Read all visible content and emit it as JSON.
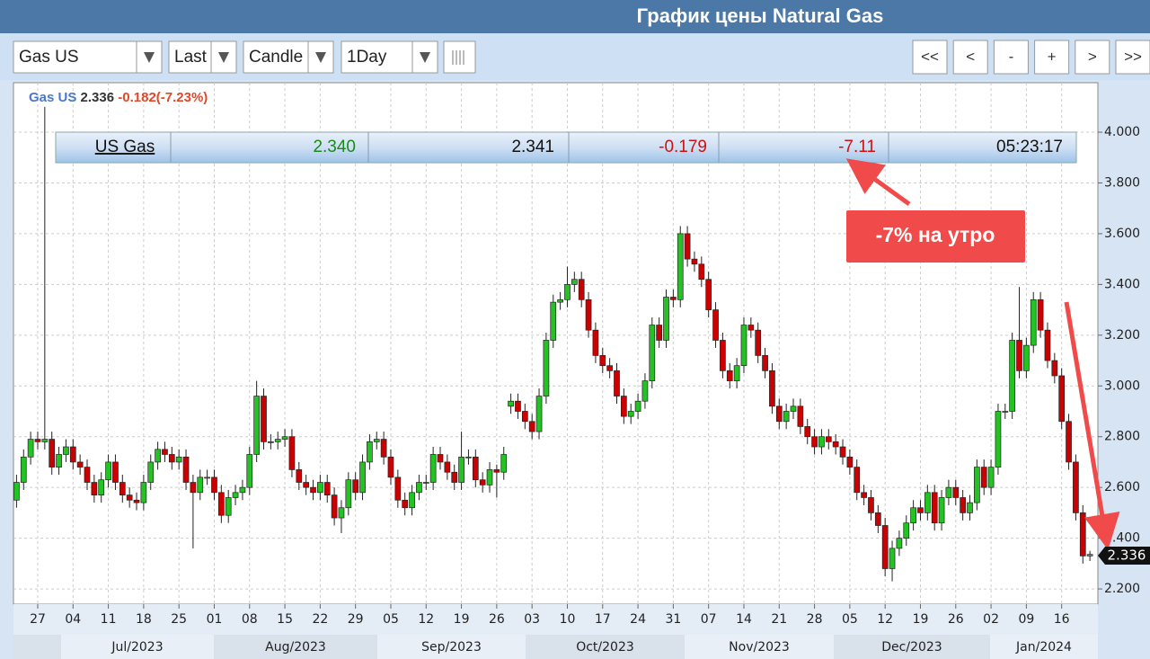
{
  "header": {
    "title": "График цены Natural Gas"
  },
  "toolbar": {
    "selects": [
      "Gas US",
      "Last",
      "Candle",
      "1Day"
    ],
    "buttons": [
      "<<",
      "<",
      "-",
      "+",
      ">",
      ">>"
    ]
  },
  "quote": {
    "name": "US Gas",
    "cells": [
      "2.340",
      "2.341",
      "-0.179",
      "-7.11",
      "05:23:17"
    ]
  },
  "chart_data": {
    "type": "candlestick",
    "legend": {
      "symbol": "Gas US",
      "price": "2.336",
      "change": "-0.182(-7.23%)"
    },
    "annotation": "-7% на утро",
    "last_price_label": "2.336",
    "up_color": "#22c322",
    "down_color": "#cc0000",
    "ylim": [
      2.14,
      4.195
    ],
    "yticks": [
      {
        "value": 2.2,
        "label": "2.200"
      },
      {
        "value": 2.4,
        "label": "2.400"
      },
      {
        "value": 2.6,
        "label": "2.600"
      },
      {
        "value": 2.8,
        "label": "2.800"
      },
      {
        "value": 3.0,
        "label": "3.000"
      },
      {
        "value": 3.2,
        "label": "3.200"
      },
      {
        "value": 3.4,
        "label": "3.400"
      },
      {
        "value": 3.6,
        "label": "3.600"
      },
      {
        "value": 3.8,
        "label": "3.800"
      },
      {
        "value": 4.0,
        "label": "4.000"
      }
    ],
    "grid": true,
    "months": [
      "Jul/2023",
      "Aug/2023",
      "Sep/2023",
      "Oct/2023",
      "Nov/2023",
      "Dec/2023",
      "Jan/2024"
    ],
    "categories": [
      null,
      null,
      null,
      "27",
      null,
      null,
      null,
      null,
      "04",
      null,
      null,
      null,
      null,
      "11",
      null,
      null,
      null,
      null,
      "18",
      null,
      null,
      null,
      null,
      "25",
      null,
      null,
      null,
      null,
      "01",
      null,
      null,
      null,
      null,
      "08",
      null,
      null,
      null,
      null,
      "15",
      null,
      null,
      null,
      null,
      "22",
      null,
      null,
      null,
      null,
      "29",
      null,
      null,
      null,
      null,
      "05",
      null,
      null,
      null,
      null,
      "12",
      null,
      null,
      null,
      null,
      "19",
      null,
      null,
      null,
      null,
      "26",
      null,
      null,
      null,
      null,
      "03",
      null,
      null,
      null,
      null,
      "10",
      null,
      null,
      null,
      null,
      "17",
      null,
      null,
      null,
      null,
      "24",
      null,
      null,
      null,
      null,
      "31",
      null,
      null,
      null,
      null,
      "07",
      null,
      null,
      null,
      null,
      "14",
      null,
      null,
      null,
      null,
      "21",
      null,
      null,
      null,
      null,
      "28",
      null,
      null,
      null,
      null,
      "05",
      null,
      null,
      null,
      null,
      "12",
      null,
      null,
      null,
      null,
      "19",
      null,
      null,
      null,
      null,
      "26",
      null,
      null,
      null,
      null,
      "02",
      null,
      null,
      null,
      null,
      "09",
      null,
      null,
      null,
      null,
      "16",
      null,
      null,
      null,
      null
    ],
    "open": [
      2.55,
      2.62,
      2.72,
      2.79,
      2.78,
      2.79,
      2.68,
      2.73,
      2.76,
      2.7,
      2.68,
      2.62,
      2.57,
      2.63,
      2.7,
      2.62,
      2.57,
      2.55,
      2.54,
      2.62,
      2.7,
      2.75,
      2.73,
      2.7,
      2.72,
      2.62,
      2.58,
      2.64,
      2.64,
      2.58,
      2.49,
      2.56,
      2.58,
      2.6,
      2.73,
      2.96,
      2.78,
      2.78,
      2.79,
      2.8,
      2.67,
      2.62,
      2.6,
      2.58,
      2.62,
      2.57,
      2.48,
      2.52,
      2.63,
      2.58,
      2.7,
      2.78,
      2.79,
      2.72,
      2.64,
      2.55,
      2.52,
      2.58,
      2.62,
      2.62,
      2.73,
      2.7,
      2.66,
      2.62,
      2.72,
      2.72,
      2.63,
      2.61,
      2.67,
      2.66,
      2.92,
      2.94,
      2.9,
      2.86,
      2.82,
      2.96,
      3.18,
      3.33,
      3.34,
      3.4,
      3.42,
      3.34,
      3.22,
      3.12,
      3.08,
      3.06,
      2.96,
      2.88,
      2.9,
      2.94,
      3.02,
      3.24,
      3.18,
      3.35,
      3.34,
      3.6,
      3.5,
      3.48,
      3.42,
      3.3,
      3.18,
      3.06,
      3.02,
      3.08,
      3.24,
      3.22,
      3.12,
      3.06,
      2.92,
      2.86,
      2.9,
      2.92,
      2.84,
      2.8,
      2.76,
      2.8,
      2.78,
      2.76,
      2.72,
      2.68,
      2.58,
      2.56,
      2.5,
      2.45,
      2.28,
      2.36,
      2.4,
      2.46,
      2.52,
      2.5,
      2.58,
      2.46,
      2.56,
      2.6,
      2.56,
      2.5,
      2.54,
      2.68,
      2.6,
      2.68,
      2.9,
      2.9,
      3.18,
      3.06,
      3.16,
      3.34,
      3.22,
      3.1,
      3.04,
      2.86,
      2.7,
      2.5,
      2.33
    ],
    "high": [
      2.65,
      2.75,
      2.82,
      2.82,
      4.1,
      2.82,
      2.76,
      2.79,
      2.79,
      2.73,
      2.71,
      2.65,
      2.66,
      2.73,
      2.73,
      2.65,
      2.6,
      2.58,
      2.65,
      2.73,
      2.78,
      2.78,
      2.76,
      2.75,
      2.75,
      2.65,
      2.67,
      2.67,
      2.67,
      2.61,
      2.59,
      2.61,
      2.63,
      2.76,
      3.02,
      2.99,
      2.81,
      2.82,
      2.83,
      2.83,
      2.7,
      2.65,
      2.63,
      2.65,
      2.65,
      2.6,
      2.55,
      2.66,
      2.66,
      2.73,
      2.81,
      2.82,
      2.82,
      2.75,
      2.67,
      2.58,
      2.61,
      2.65,
      2.65,
      2.76,
      2.76,
      2.73,
      2.69,
      2.82,
      2.75,
      2.75,
      2.66,
      2.7,
      2.69,
      2.76,
      2.97,
      2.97,
      2.93,
      2.89,
      2.99,
      3.21,
      3.36,
      3.37,
      3.47,
      3.45,
      3.45,
      3.37,
      3.25,
      3.15,
      3.11,
      3.09,
      2.99,
      2.93,
      2.97,
      3.05,
      3.27,
      3.27,
      3.38,
      3.38,
      3.63,
      3.63,
      3.53,
      3.51,
      3.45,
      3.33,
      3.21,
      3.09,
      3.11,
      3.27,
      3.27,
      3.25,
      3.15,
      3.09,
      2.95,
      2.93,
      2.95,
      2.95,
      2.87,
      2.83,
      2.83,
      2.83,
      2.81,
      2.79,
      2.75,
      2.71,
      2.61,
      2.59,
      2.53,
      2.48,
      2.39,
      2.43,
      2.49,
      2.55,
      2.55,
      2.61,
      2.61,
      2.59,
      2.63,
      2.63,
      2.59,
      2.57,
      2.71,
      2.71,
      2.71,
      2.93,
      2.93,
      3.21,
      3.39,
      3.19,
      3.37,
      3.37,
      3.25,
      3.13,
      3.07,
      2.89,
      2.73,
      2.53,
      2.35
    ],
    "low": [
      2.52,
      2.59,
      2.69,
      2.75,
      2.75,
      2.65,
      2.65,
      2.7,
      2.67,
      2.65,
      2.59,
      2.54,
      2.54,
      2.6,
      2.59,
      2.54,
      2.52,
      2.51,
      2.51,
      2.59,
      2.67,
      2.7,
      2.67,
      2.67,
      2.59,
      2.36,
      2.55,
      2.61,
      2.55,
      2.46,
      2.46,
      2.53,
      2.55,
      2.57,
      2.7,
      2.75,
      2.75,
      2.75,
      2.76,
      2.64,
      2.59,
      2.57,
      2.55,
      2.55,
      2.54,
      2.45,
      2.42,
      2.49,
      2.55,
      2.55,
      2.67,
      2.75,
      2.69,
      2.61,
      2.52,
      2.49,
      2.49,
      2.55,
      2.59,
      2.59,
      2.67,
      2.63,
      2.59,
      2.59,
      2.69,
      2.6,
      2.58,
      2.58,
      2.56,
      2.63,
      2.89,
      2.87,
      2.83,
      2.79,
      2.79,
      2.93,
      3.15,
      3.3,
      3.31,
      3.37,
      3.31,
      3.19,
      3.09,
      3.05,
      3.03,
      2.93,
      2.85,
      2.85,
      2.87,
      2.91,
      2.99,
      3.15,
      3.15,
      3.31,
      3.31,
      3.47,
      3.45,
      3.39,
      3.27,
      3.15,
      3.03,
      2.99,
      2.99,
      3.05,
      3.19,
      3.09,
      3.03,
      2.89,
      2.83,
      2.83,
      2.87,
      2.81,
      2.77,
      2.73,
      2.73,
      2.75,
      2.73,
      2.69,
      2.65,
      2.55,
      2.53,
      2.47,
      2.42,
      2.25,
      2.23,
      2.33,
      2.37,
      2.43,
      2.47,
      2.47,
      2.43,
      2.43,
      2.53,
      2.53,
      2.47,
      2.47,
      2.51,
      2.57,
      2.57,
      2.65,
      2.87,
      2.87,
      3.03,
      3.03,
      3.13,
      3.19,
      3.07,
      3.01,
      2.83,
      2.67,
      2.47,
      2.3,
      2.31
    ],
    "close": [
      2.62,
      2.72,
      2.79,
      2.78,
      2.79,
      2.68,
      2.73,
      2.76,
      2.7,
      2.68,
      2.62,
      2.57,
      2.63,
      2.7,
      2.62,
      2.57,
      2.55,
      2.54,
      2.62,
      2.7,
      2.75,
      2.73,
      2.7,
      2.72,
      2.62,
      2.58,
      2.64,
      2.64,
      2.58,
      2.49,
      2.56,
      2.58,
      2.6,
      2.73,
      2.96,
      2.78,
      2.78,
      2.79,
      2.8,
      2.67,
      2.62,
      2.6,
      2.58,
      2.62,
      2.57,
      2.48,
      2.52,
      2.63,
      2.58,
      2.7,
      2.78,
      2.79,
      2.72,
      2.64,
      2.55,
      2.52,
      2.58,
      2.62,
      2.62,
      2.73,
      2.7,
      2.66,
      2.62,
      2.72,
      2.72,
      2.63,
      2.61,
      2.67,
      2.66,
      2.73,
      2.94,
      2.9,
      2.86,
      2.82,
      2.96,
      3.18,
      3.33,
      3.34,
      3.4,
      3.42,
      3.34,
      3.22,
      3.12,
      3.08,
      3.06,
      2.96,
      2.88,
      2.9,
      2.94,
      3.02,
      3.24,
      3.18,
      3.35,
      3.34,
      3.6,
      3.5,
      3.48,
      3.42,
      3.3,
      3.18,
      3.06,
      3.02,
      3.08,
      3.24,
      3.22,
      3.12,
      3.06,
      2.92,
      2.86,
      2.9,
      2.92,
      2.84,
      2.8,
      2.76,
      2.8,
      2.78,
      2.76,
      2.72,
      2.68,
      2.58,
      2.56,
      2.5,
      2.45,
      2.28,
      2.36,
      2.4,
      2.46,
      2.52,
      2.5,
      2.58,
      2.46,
      2.56,
      2.6,
      2.56,
      2.5,
      2.54,
      2.68,
      2.6,
      2.68,
      2.9,
      2.9,
      3.18,
      3.06,
      3.16,
      3.34,
      3.22,
      3.1,
      3.04,
      2.86,
      2.7,
      2.5,
      2.33,
      2.336
    ]
  }
}
